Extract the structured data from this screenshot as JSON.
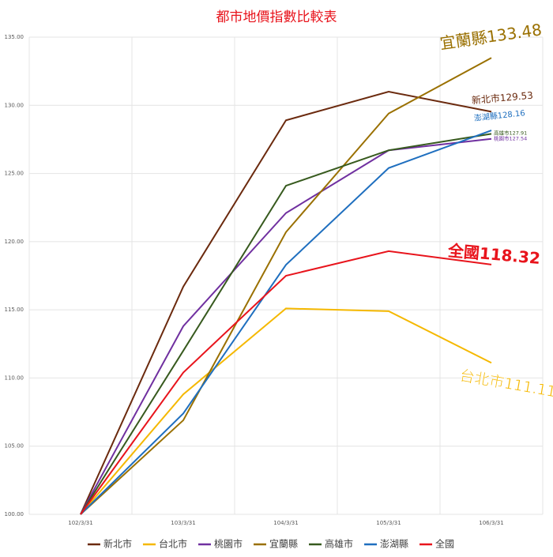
{
  "chart_data": {
    "type": "line",
    "title": "都市地價指數比較表",
    "categories": [
      "102/3/31",
      "103/3/31",
      "104/3/31",
      "105/3/31",
      "106/3/31"
    ],
    "series": [
      {
        "name": "新北市",
        "color": "#6b2a0e",
        "values": [
          100,
          116.7,
          128.9,
          131.0,
          129.53
        ]
      },
      {
        "name": "台北市",
        "color": "#f5b800",
        "values": [
          100,
          108.8,
          115.1,
          114.9,
          111.11
        ]
      },
      {
        "name": "桃園市",
        "color": "#7030a0",
        "values": [
          100,
          113.8,
          122.1,
          126.7,
          127.54
        ]
      },
      {
        "name": "宜蘭縣",
        "color": "#9a7000",
        "values": [
          100,
          106.9,
          120.7,
          129.4,
          133.48
        ]
      },
      {
        "name": "高雄市",
        "color": "#375a1e",
        "values": [
          100,
          112.0,
          124.1,
          126.7,
          127.91
        ]
      },
      {
        "name": "澎湖縣",
        "color": "#1f6fbf",
        "values": [
          100,
          107.4,
          118.3,
          125.4,
          128.16
        ]
      },
      {
        "name": "全國",
        "color": "#e8141c",
        "values": [
          100,
          110.4,
          117.5,
          119.3,
          118.32
        ]
      }
    ],
    "ylim": [
      100,
      135
    ],
    "yticks": [
      {
        "value": 100,
        "label": "100.00"
      },
      {
        "value": 105,
        "label": "105.00"
      },
      {
        "value": 110,
        "label": "110.00"
      },
      {
        "value": 115,
        "label": "115.00"
      },
      {
        "value": 120,
        "label": "120.00"
      },
      {
        "value": 125,
        "label": "125.00"
      },
      {
        "value": 130,
        "label": "130.00"
      },
      {
        "value": 135,
        "label": "135.00"
      }
    ],
    "grid": true,
    "legend": "bottom"
  }
}
